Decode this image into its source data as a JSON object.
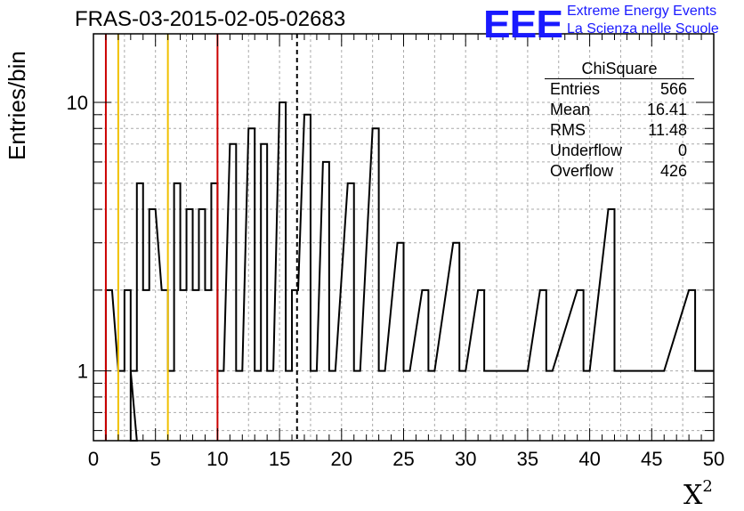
{
  "header": {
    "title": "FRAS-03-2015-02-05-02683",
    "logo_text": "EEE",
    "logo_line1": "Extreme Energy Events",
    "logo_line2": "La Scienza nelle Scuole"
  },
  "stats": {
    "title": "ChiSquare",
    "rows": [
      {
        "label": "Entries",
        "value": "566"
      },
      {
        "label": "Mean",
        "value": "16.41"
      },
      {
        "label": "RMS",
        "value": "11.48"
      },
      {
        "label": "Underflow",
        "value": "0"
      },
      {
        "label": "Overflow",
        "value": "426"
      }
    ]
  },
  "colors": {
    "red_line": "#cc0000",
    "yellow_line": "#f0c000",
    "logo_blue": "#1a1aff"
  },
  "chart_data": {
    "type": "bar",
    "style": "step-histogram",
    "title": "FRAS-03-2015-02-05-02683",
    "xlabel": "X²",
    "ylabel": "Entries/bin",
    "xlim": [
      0,
      50
    ],
    "ylim": [
      0.55,
      18
    ],
    "yscale": "log",
    "grid": true,
    "bin_width": 1,
    "bins": [
      {
        "x0": 1,
        "value": 2
      },
      {
        "x0": 2,
        "value": 1
      },
      {
        "x0": 2.5,
        "value": 2
      },
      {
        "x0": 3,
        "value": 0
      },
      {
        "x0": 3,
        "value": 1
      },
      {
        "x0": 3.5,
        "value": 5
      },
      {
        "x0": 4,
        "value": 2
      },
      {
        "x0": 4.5,
        "value": 4
      },
      {
        "x0": 5.5,
        "value": 2
      },
      {
        "x0": 6,
        "value": 1
      },
      {
        "x0": 6.5,
        "value": 5
      },
      {
        "x0": 7,
        "value": 2
      },
      {
        "x0": 7.5,
        "value": 4
      },
      {
        "x0": 8,
        "value": 2
      },
      {
        "x0": 8.5,
        "value": 4
      },
      {
        "x0": 9,
        "value": 2
      },
      {
        "x0": 9.5,
        "value": 5
      },
      {
        "x0": 10,
        "value": 1
      },
      {
        "x0": 11,
        "value": 7
      },
      {
        "x0": 11.5,
        "value": 1
      },
      {
        "x0": 12.5,
        "value": 8
      },
      {
        "x0": 13,
        "value": 1
      },
      {
        "x0": 13.5,
        "value": 7
      },
      {
        "x0": 14,
        "value": 1
      },
      {
        "x0": 15,
        "value": 10
      },
      {
        "x0": 15.5,
        "value": 1
      },
      {
        "x0": 16,
        "value": 2
      },
      {
        "x0": 17,
        "value": 9
      },
      {
        "x0": 17.5,
        "value": 1
      },
      {
        "x0": 18.5,
        "value": 6
      },
      {
        "x0": 19,
        "value": 1
      },
      {
        "x0": 20.5,
        "value": 5
      },
      {
        "x0": 21,
        "value": 1
      },
      {
        "x0": 22.5,
        "value": 8
      },
      {
        "x0": 23,
        "value": 1
      },
      {
        "x0": 24.5,
        "value": 3
      },
      {
        "x0": 25,
        "value": 1
      },
      {
        "x0": 26.5,
        "value": 2
      },
      {
        "x0": 27,
        "value": 1
      },
      {
        "x0": 29,
        "value": 3
      },
      {
        "x0": 29.5,
        "value": 1
      },
      {
        "x0": 31,
        "value": 2
      },
      {
        "x0": 31.5,
        "value": 1
      },
      {
        "x0": 33.5,
        "value": 1
      },
      {
        "x0": 34.5,
        "value": 1
      },
      {
        "x0": 36,
        "value": 2
      },
      {
        "x0": 36.5,
        "value": 1
      },
      {
        "x0": 39,
        "value": 2
      },
      {
        "x0": 39.5,
        "value": 1
      },
      {
        "x0": 41.5,
        "value": 4
      },
      {
        "x0": 42,
        "value": 1
      },
      {
        "x0": 44.5,
        "value": 1
      },
      {
        "x0": 45.5,
        "value": 1
      },
      {
        "x0": 48,
        "value": 2
      },
      {
        "x0": 48.5,
        "value": 1
      },
      {
        "x0": 49.5,
        "value": 1
      }
    ],
    "vertical_lines": [
      {
        "x": 1,
        "color": "red",
        "style": "solid"
      },
      {
        "x": 2,
        "color": "yellow",
        "style": "solid"
      },
      {
        "x": 6,
        "color": "yellow",
        "style": "solid"
      },
      {
        "x": 10,
        "color": "red",
        "style": "solid"
      },
      {
        "x": 16.41,
        "color": "black",
        "style": "dashed"
      }
    ],
    "x_ticks": [
      "0",
      "5",
      "10",
      "15",
      "20",
      "25",
      "30",
      "35",
      "40",
      "45",
      "50"
    ],
    "y_ticks": [
      "1",
      "10"
    ]
  }
}
